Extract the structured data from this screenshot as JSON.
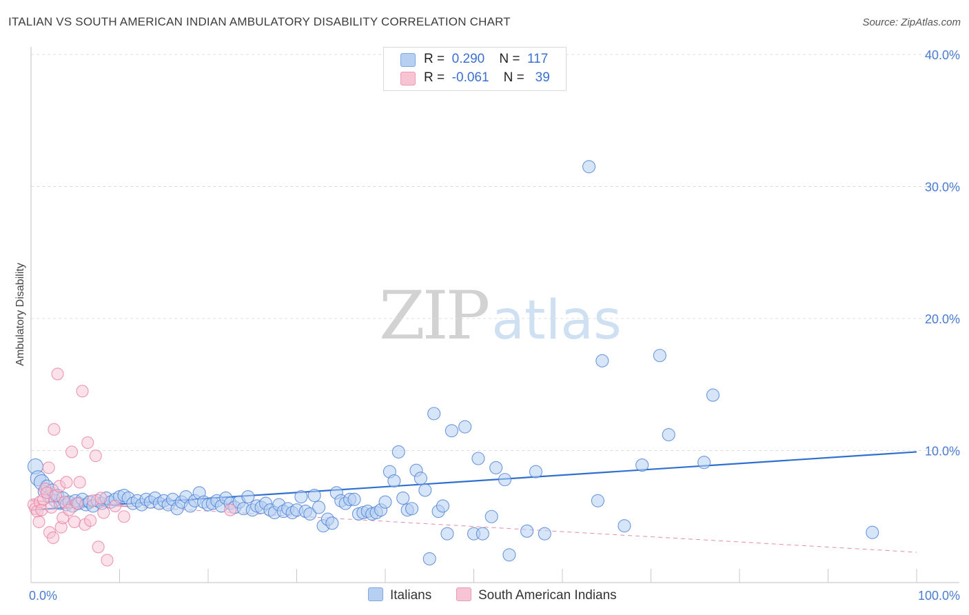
{
  "header": {
    "title": "ITALIAN VS SOUTH AMERICAN INDIAN AMBULATORY DISABILITY CORRELATION CHART",
    "source": "Source: ZipAtlas.com"
  },
  "watermark": {
    "zip": "ZIP",
    "atlas": "atlas"
  },
  "legend": {
    "rows": [
      {
        "r_label": "R =",
        "r_value": "0.290",
        "n_label": "N =",
        "n_value": "117",
        "color": "#a9c8ef"
      },
      {
        "r_label": "R =",
        "r_value": "-0.061",
        "n_label": "N =",
        "n_value": "39",
        "color": "#f5b8cb"
      }
    ]
  },
  "bottom_legend": [
    {
      "label": "Italians",
      "color": "#a9c8ef"
    },
    {
      "label": "South American Indians",
      "color": "#f5b8cb"
    }
  ],
  "chart_data": {
    "type": "scatter",
    "title": "ITALIAN VS SOUTH AMERICAN INDIAN AMBULATORY DISABILITY CORRELATION CHART",
    "xlabel": "",
    "ylabel": "Ambulatory Disability",
    "xlim": [
      0,
      100
    ],
    "ylim": [
      0,
      40
    ],
    "x_tick_labels": [
      "0.0%",
      "100.0%"
    ],
    "y_tick_labels": [
      "10.0%",
      "20.0%",
      "30.0%",
      "40.0%"
    ],
    "y_ticks": [
      10,
      20,
      30,
      40
    ],
    "grid": "horizontal dashed",
    "legend_position": "top-center",
    "colors": {
      "italians": "#4a7fd4",
      "italians_fill": "#b7d0f2",
      "sai": "#e97fa3",
      "sai_fill": "#f7c4d4",
      "trend_blue": "#2f6fd0",
      "trend_pink": "#e58aa8"
    },
    "series": [
      {
        "name": "Italians",
        "r": 0.29,
        "n": 117,
        "trend": {
          "x": [
            0,
            100
          ],
          "y": [
            5.5,
            9.9
          ]
        },
        "points": [
          [
            0.5,
            8.8
          ],
          [
            0.8,
            7.9
          ],
          [
            1.2,
            7.6
          ],
          [
            1.5,
            6.9
          ],
          [
            1.8,
            7.3
          ],
          [
            2.0,
            6.5
          ],
          [
            2.4,
            7.0
          ],
          [
            2.7,
            6.2
          ],
          [
            3.0,
            6.6
          ],
          [
            3.3,
            6.0
          ],
          [
            3.6,
            6.4
          ],
          [
            4.0,
            5.9
          ],
          [
            4.3,
            6.1
          ],
          [
            4.7,
            5.8
          ],
          [
            5.0,
            6.2
          ],
          [
            5.4,
            6.0
          ],
          [
            5.8,
            6.3
          ],
          [
            6.2,
            5.9
          ],
          [
            6.6,
            6.1
          ],
          [
            7.0,
            5.8
          ],
          [
            7.5,
            6.2
          ],
          [
            8.0,
            6.0
          ],
          [
            8.5,
            6.4
          ],
          [
            9.0,
            6.1
          ],
          [
            9.5,
            6.3
          ],
          [
            10.0,
            6.5
          ],
          [
            10.5,
            6.6
          ],
          [
            11.0,
            6.4
          ],
          [
            11.5,
            6.0
          ],
          [
            12.0,
            6.2
          ],
          [
            12.5,
            5.9
          ],
          [
            13.0,
            6.3
          ],
          [
            13.5,
            6.1
          ],
          [
            14.0,
            6.4
          ],
          [
            14.5,
            6.0
          ],
          [
            15.0,
            6.2
          ],
          [
            15.5,
            5.9
          ],
          [
            16.0,
            6.3
          ],
          [
            16.5,
            5.6
          ],
          [
            17.0,
            6.1
          ],
          [
            17.5,
            6.5
          ],
          [
            18.0,
            5.8
          ],
          [
            18.5,
            6.2
          ],
          [
            19.0,
            6.8
          ],
          [
            19.5,
            6.1
          ],
          [
            20.0,
            5.9
          ],
          [
            20.5,
            6.0
          ],
          [
            21.0,
            6.2
          ],
          [
            21.5,
            5.8
          ],
          [
            22.0,
            6.4
          ],
          [
            22.5,
            6.0
          ],
          [
            23.0,
            5.7
          ],
          [
            23.5,
            6.1
          ],
          [
            24.0,
            5.6
          ],
          [
            24.5,
            6.5
          ],
          [
            25.0,
            5.5
          ],
          [
            25.5,
            5.8
          ],
          [
            26.0,
            5.7
          ],
          [
            26.5,
            6.0
          ],
          [
            27.0,
            5.5
          ],
          [
            27.5,
            5.3
          ],
          [
            28.0,
            5.9
          ],
          [
            28.5,
            5.4
          ],
          [
            29.0,
            5.6
          ],
          [
            29.5,
            5.3
          ],
          [
            30.0,
            5.5
          ],
          [
            30.5,
            6.5
          ],
          [
            31.0,
            5.4
          ],
          [
            31.5,
            5.2
          ],
          [
            32.0,
            6.6
          ],
          [
            32.5,
            5.7
          ],
          [
            33.0,
            4.3
          ],
          [
            33.5,
            4.8
          ],
          [
            34.0,
            4.5
          ],
          [
            34.5,
            6.8
          ],
          [
            35.0,
            6.2
          ],
          [
            35.5,
            6.0
          ],
          [
            36.0,
            6.3
          ],
          [
            36.5,
            6.3
          ],
          [
            37.0,
            5.2
          ],
          [
            37.5,
            5.3
          ],
          [
            38.0,
            5.4
          ],
          [
            38.5,
            5.2
          ],
          [
            39.0,
            5.3
          ],
          [
            39.5,
            5.5
          ],
          [
            40.0,
            6.1
          ],
          [
            40.5,
            8.4
          ],
          [
            41.0,
            7.7
          ],
          [
            41.5,
            9.9
          ],
          [
            42.0,
            6.4
          ],
          [
            42.5,
            5.5
          ],
          [
            43.0,
            5.6
          ],
          [
            43.5,
            8.5
          ],
          [
            44.0,
            7.9
          ],
          [
            44.5,
            7.0
          ],
          [
            45.0,
            1.8
          ],
          [
            45.5,
            12.8
          ],
          [
            46.0,
            5.4
          ],
          [
            46.5,
            5.8
          ],
          [
            47.0,
            3.7
          ],
          [
            47.5,
            11.5
          ],
          [
            49.0,
            11.8
          ],
          [
            50.0,
            3.7
          ],
          [
            50.5,
            9.4
          ],
          [
            51.0,
            3.7
          ],
          [
            52.0,
            5.0
          ],
          [
            52.5,
            8.7
          ],
          [
            53.5,
            7.8
          ],
          [
            54.0,
            2.1
          ],
          [
            56.0,
            3.9
          ],
          [
            57.0,
            8.4
          ],
          [
            58.0,
            3.7
          ],
          [
            63.0,
            31.5
          ],
          [
            64.0,
            6.2
          ],
          [
            64.5,
            16.8
          ],
          [
            67.0,
            4.3
          ],
          [
            69.0,
            8.9
          ],
          [
            71.0,
            17.2
          ],
          [
            72.0,
            11.2
          ],
          [
            76.0,
            9.1
          ],
          [
            77.0,
            14.2
          ],
          [
            95.0,
            3.8
          ]
        ]
      },
      {
        "name": "South American Indians",
        "r": -0.061,
        "n": 39,
        "trend": {
          "x": [
            0,
            100
          ],
          "y": [
            6.2,
            2.3
          ]
        },
        "points": [
          [
            0.3,
            5.9
          ],
          [
            0.5,
            5.6
          ],
          [
            0.7,
            5.4
          ],
          [
            0.9,
            4.6
          ],
          [
            1.0,
            6.1
          ],
          [
            1.2,
            5.5
          ],
          [
            1.4,
            6.3
          ],
          [
            1.6,
            7.1
          ],
          [
            1.8,
            6.8
          ],
          [
            2.0,
            8.7
          ],
          [
            2.1,
            3.8
          ],
          [
            2.3,
            5.7
          ],
          [
            2.5,
            3.4
          ],
          [
            2.6,
            11.6
          ],
          [
            2.8,
            6.6
          ],
          [
            3.0,
            15.8
          ],
          [
            3.2,
            7.3
          ],
          [
            3.4,
            4.2
          ],
          [
            3.6,
            4.9
          ],
          [
            3.8,
            6.1
          ],
          [
            4.0,
            7.6
          ],
          [
            4.3,
            5.5
          ],
          [
            4.6,
            9.9
          ],
          [
            4.9,
            4.6
          ],
          [
            5.2,
            6.0
          ],
          [
            5.5,
            7.6
          ],
          [
            5.8,
            14.5
          ],
          [
            6.1,
            4.4
          ],
          [
            6.4,
            10.6
          ],
          [
            6.7,
            4.7
          ],
          [
            7.0,
            6.2
          ],
          [
            7.3,
            9.6
          ],
          [
            7.6,
            2.7
          ],
          [
            7.9,
            6.4
          ],
          [
            8.2,
            5.3
          ],
          [
            8.6,
            1.7
          ],
          [
            9.5,
            5.8
          ],
          [
            10.5,
            5.0
          ],
          [
            22.5,
            5.5
          ]
        ]
      }
    ]
  }
}
